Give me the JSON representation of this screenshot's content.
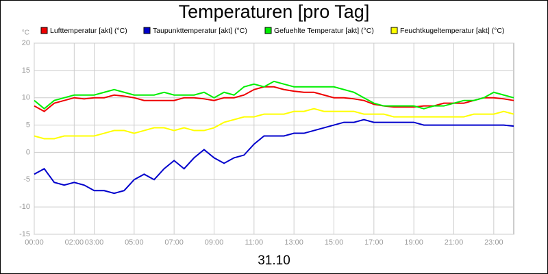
{
  "chart_data": {
    "type": "line",
    "title": "Temperaturen [pro Tag]",
    "subtitle": "31.10",
    "y_label": "°C",
    "x": [
      0,
      0.5,
      1,
      1.5,
      2,
      2.5,
      3,
      3.5,
      4,
      4.5,
      5,
      5.5,
      6,
      6.5,
      7,
      7.5,
      8,
      8.5,
      9,
      9.5,
      10,
      10.5,
      11,
      11.5,
      12,
      12.5,
      13,
      13.5,
      14,
      14.5,
      15,
      15.5,
      16,
      16.5,
      17,
      17.5,
      18,
      18.5,
      19,
      19.5,
      20,
      20.5,
      21,
      21.5,
      22,
      22.5,
      23,
      23.5,
      24
    ],
    "series": [
      {
        "name": "Lufttemperatur [akt] (°C)",
        "color": "#ee0000",
        "values": [
          8.5,
          7.5,
          9,
          9.5,
          10,
          9.8,
          10,
          10,
          10.5,
          10.3,
          10,
          9.5,
          9.5,
          9.5,
          9.5,
          10,
          10,
          9.8,
          9.5,
          10,
          10,
          10.5,
          11.5,
          12,
          12,
          11.5,
          11.2,
          11,
          11,
          10.5,
          10,
          10,
          9.8,
          9.5,
          8.8,
          8.5,
          8.3,
          8.3,
          8.3,
          8.5,
          8.5,
          9,
          9,
          9,
          9.5,
          10,
          10,
          9.8,
          9.5
        ]
      },
      {
        "name": "Taupunkttemperatur [akt] (°C)",
        "color": "#0000cc",
        "values": [
          -4,
          -3,
          -5.5,
          -6,
          -5.5,
          -6,
          -7,
          -7,
          -7.5,
          -7,
          -5,
          -4,
          -5,
          -3,
          -1.5,
          -3,
          -1,
          0.5,
          -1,
          -2,
          -1,
          -0.5,
          1.5,
          3,
          3,
          3,
          3.5,
          3.5,
          4,
          4.5,
          5,
          5.5,
          5.5,
          6,
          5.5,
          5.5,
          5.5,
          5.5,
          5.5,
          5,
          5,
          5,
          5,
          5,
          5,
          5,
          5,
          5,
          4.8
        ]
      },
      {
        "name": "Gefuehlte Temperatur [akt] (°C)",
        "color": "#00ee00",
        "values": [
          9.5,
          8,
          9.5,
          10,
          10.5,
          10.5,
          10.5,
          11,
          11.5,
          11,
          10.5,
          10.5,
          10.5,
          11,
          10.5,
          10.5,
          10.5,
          11,
          10,
          11,
          10.5,
          12,
          12.5,
          12,
          13,
          12.5,
          12,
          12,
          12,
          12,
          12,
          11.5,
          11,
          10,
          9,
          8.5,
          8.5,
          8.5,
          8.5,
          8,
          8.5,
          8.5,
          9,
          9.5,
          9.5,
          10,
          11,
          10.5,
          10
        ]
      },
      {
        "name": "Feuchtkugeltemperatur [akt] (°C)",
        "color": "#ffff00",
        "values": [
          3,
          2.5,
          2.5,
          3,
          3,
          3,
          3,
          3.5,
          4,
          4,
          3.5,
          4,
          4.5,
          4.5,
          4,
          4.5,
          4,
          4,
          4.5,
          5.5,
          6,
          6.5,
          6.5,
          7,
          7,
          7,
          7.5,
          7.5,
          8,
          7.5,
          7.5,
          7.5,
          7.5,
          7,
          7,
          7,
          6.5,
          6.5,
          6.5,
          6.5,
          6.5,
          6.5,
          6.5,
          6.5,
          7,
          7,
          7,
          7.5,
          7
        ]
      }
    ],
    "xlim": [
      0,
      24
    ],
    "xticks": [
      {
        "value": 0,
        "label": "00:00"
      },
      {
        "value": 2,
        "label": "02:00"
      },
      {
        "value": 3,
        "label": "03:00"
      },
      {
        "value": 5,
        "label": "05:00"
      },
      {
        "value": 7,
        "label": "07:00"
      },
      {
        "value": 9,
        "label": "09:00"
      },
      {
        "value": 11,
        "label": "11:00"
      },
      {
        "value": 13,
        "label": "13:00"
      },
      {
        "value": 15,
        "label": "15:00"
      },
      {
        "value": 17,
        "label": "17:00"
      },
      {
        "value": 19,
        "label": "19:00"
      },
      {
        "value": 21,
        "label": "21:00"
      },
      {
        "value": 23,
        "label": "23:00"
      }
    ],
    "ylim": [
      -15,
      20
    ],
    "yticks": [
      -15,
      -10,
      -5,
      0,
      5,
      10,
      15,
      20
    ],
    "grid": true
  }
}
